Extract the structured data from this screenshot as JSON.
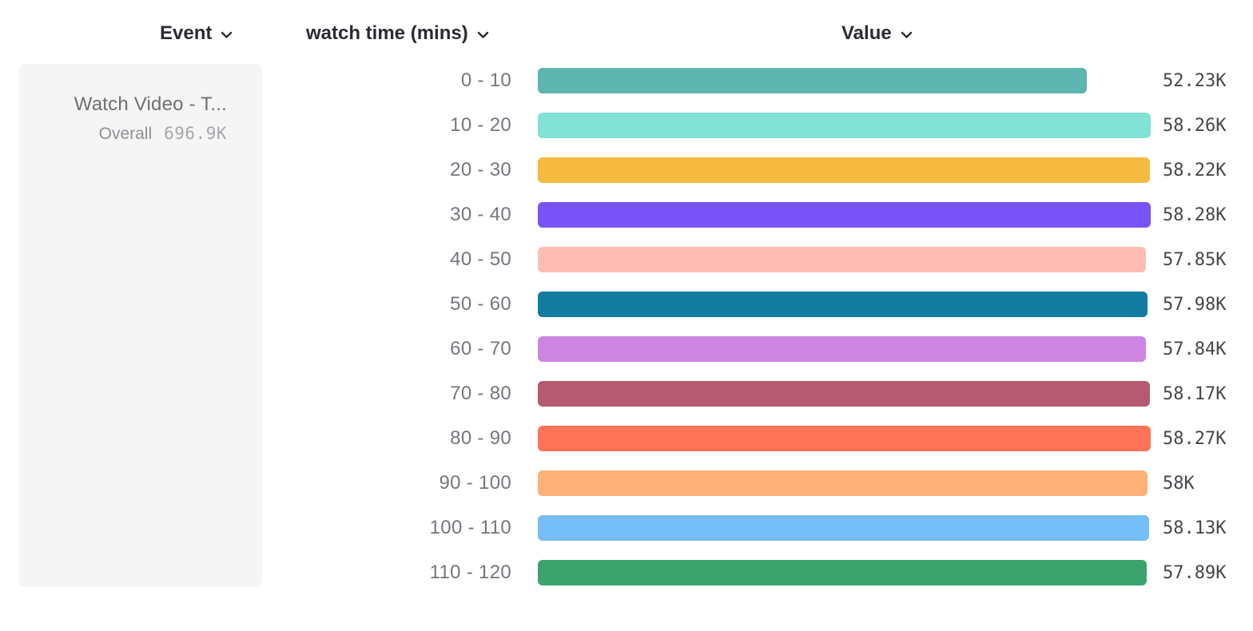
{
  "header": {
    "event_column": "Event",
    "breakdown_column": "watch time (mins)",
    "value_column": "Value"
  },
  "event_card": {
    "title": "Watch Video - T...",
    "overall_label": "Overall",
    "overall_value": "696.9K"
  },
  "chart_data": {
    "type": "bar",
    "orientation": "horizontal",
    "title": "",
    "xlabel": "Value",
    "ylabel": "watch time (mins)",
    "categories": [
      "0 - 10",
      "10 - 20",
      "20 - 30",
      "30 - 40",
      "40 - 50",
      "50 - 60",
      "60 - 70",
      "70 - 80",
      "80 - 90",
      "90 - 100",
      "100 - 110",
      "110 - 120"
    ],
    "values": [
      52230,
      58260,
      58220,
      58280,
      57850,
      57980,
      57840,
      58170,
      58270,
      58000,
      58130,
      57890
    ],
    "display_values": [
      "52.23K",
      "58.26K",
      "58.22K",
      "58.28K",
      "57.85K",
      "57.98K",
      "57.84K",
      "58.17K",
      "58.27K",
      "58K",
      "58.13K",
      "57.89K"
    ],
    "colors": [
      "#5CB5AF",
      "#82E2D6",
      "#F6BA3E",
      "#7854F7",
      "#FEBDB3",
      "#127CA1",
      "#CC85E1",
      "#B65A72",
      "#FF7358",
      "#FDB078",
      "#75BDF6",
      "#3DA36E"
    ],
    "xlim": [
      0,
      58280
    ],
    "grid": false,
    "legend": "event card at left showing series name and overall total"
  }
}
